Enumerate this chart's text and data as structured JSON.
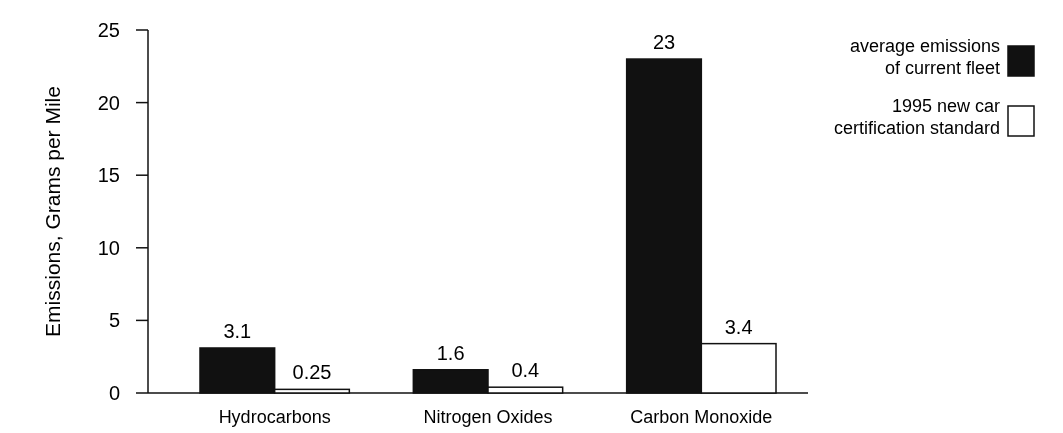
{
  "chart_data": {
    "type": "bar",
    "ylabel": "Emissions, Grams per Mile",
    "categories": [
      "Hydrocarbons",
      "Nitrogen Oxides",
      "Carbon Monoxide"
    ],
    "series": [
      {
        "name": "average emissions of current fleet",
        "color": "#111111",
        "values": [
          3.1,
          1.6,
          23
        ]
      },
      {
        "name": "1995 new car certification standard",
        "color": "#ffffff",
        "values": [
          0.25,
          0.4,
          3.4
        ]
      }
    ],
    "ylim": [
      0,
      25
    ],
    "yticks": [
      0,
      5,
      10,
      15,
      20,
      25
    ],
    "data_labels": true,
    "legend": "top right",
    "grid": false
  }
}
